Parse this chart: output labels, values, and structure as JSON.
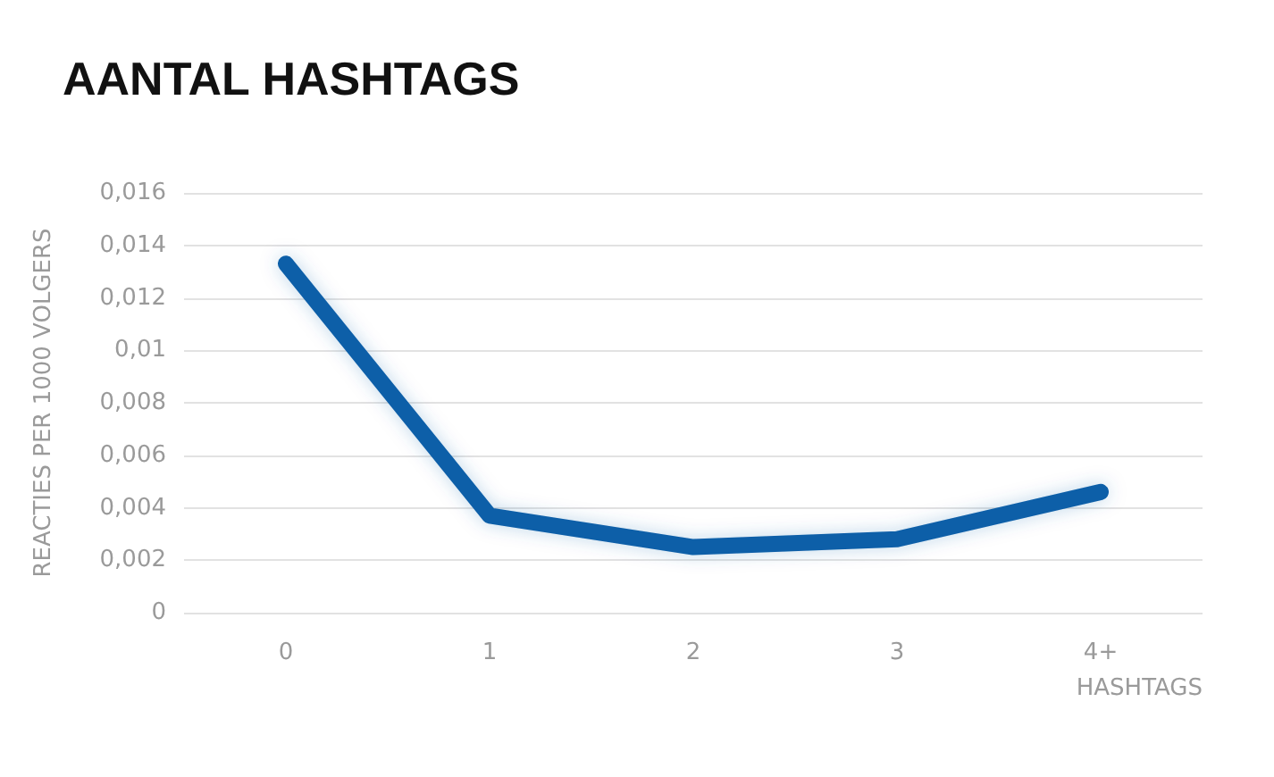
{
  "chart_data": {
    "type": "line",
    "title": "AANTAL HASHTAGS",
    "xlabel": "HASHTAGS",
    "ylabel": "REACTIES PER 1000 VOLGERS",
    "categories": [
      "0",
      "1",
      "2",
      "3",
      "4+"
    ],
    "series": [
      {
        "color": "#0b5ea8",
        "values": [
          0.0133,
          0.0037,
          0.0025,
          0.0028,
          0.0046
        ]
      }
    ],
    "ylim": [
      0,
      0.016
    ],
    "yticks": [
      0,
      {
        "value": 0.002,
        "label": "0,002"
      },
      {
        "value": 0.004,
        "label": "0,004"
      },
      {
        "value": 0.006,
        "label": "0,006"
      },
      {
        "value": 0.008,
        "label": "0,008"
      },
      {
        "value": 0.01,
        "label": "0,01"
      },
      {
        "value": 0.012,
        "label": "0,012"
      },
      {
        "value": 0.014,
        "label": "0,014"
      },
      {
        "value": 0.016,
        "label": "0,016"
      }
    ],
    "grid": "y",
    "line_style": "solid"
  }
}
